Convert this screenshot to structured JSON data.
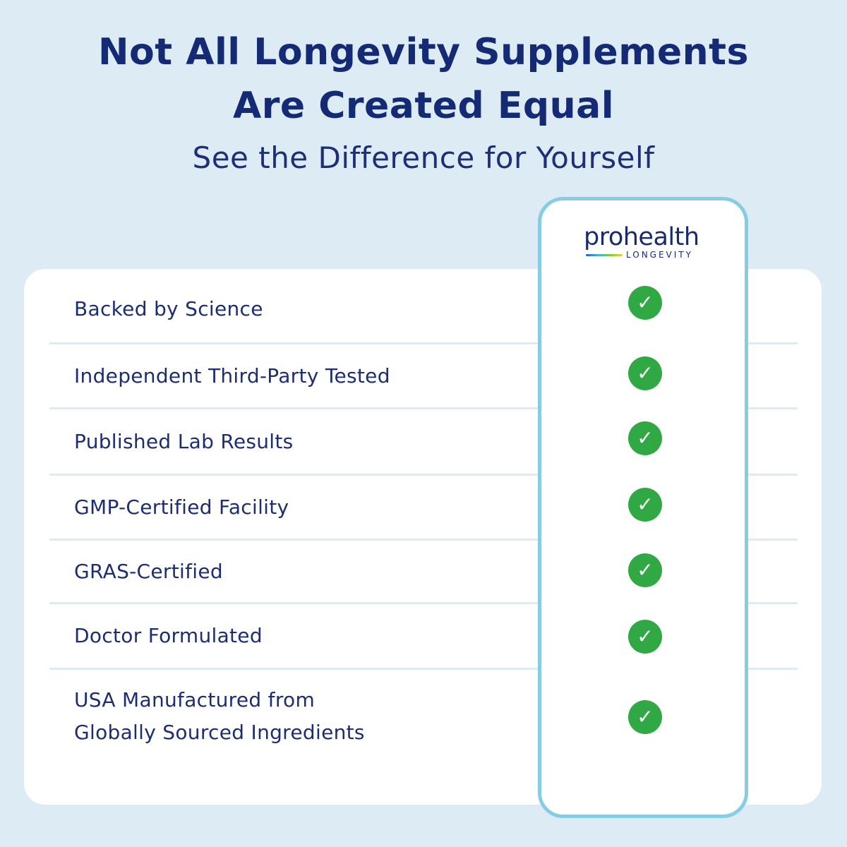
{
  "header": {
    "title_line1": "Not All Longevity Supplements",
    "title_line2": "Are Created Equal",
    "subtitle": "See the Difference for Yourself"
  },
  "brand": {
    "name": "prohealth",
    "tagline": "LONGEVITY"
  },
  "features": [
    {
      "label": "Backed by Science",
      "checked": true
    },
    {
      "label": "Independent Third-Party Tested",
      "checked": true
    },
    {
      "label": "Published Lab Results",
      "checked": true
    },
    {
      "label": "GMP-Certified Facility",
      "checked": true
    },
    {
      "label": "GRAS-Certified",
      "checked": true
    },
    {
      "label": "Doctor Formulated",
      "checked": true
    },
    {
      "label": "USA Manufactured from\nGlobally Sourced Ingredients",
      "checked": true
    }
  ],
  "icons": {
    "check": "check-icon",
    "check_glyph": "✓"
  },
  "colors": {
    "background": "#dcebf4",
    "title": "#142a75",
    "highlight_border": "#86cde4",
    "check_fill": "#30a945"
  }
}
